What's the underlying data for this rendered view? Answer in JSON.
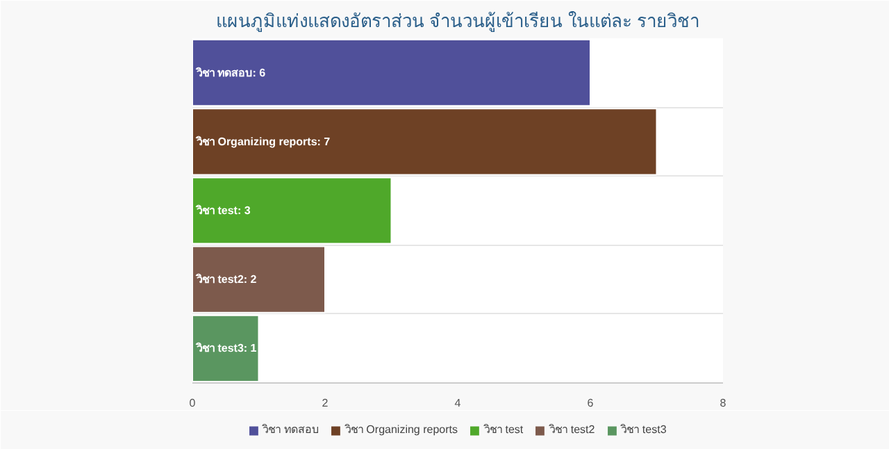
{
  "chart_data": {
    "type": "bar",
    "orientation": "horizontal",
    "stacked": true,
    "title": "แผนภูมิแท่งแสดงอัตราส่วน จำนวนผู้เข้าเรียน ในแต่ละ รายวิชา",
    "categories": [
      null,
      null,
      null,
      null,
      null
    ],
    "series": [
      {
        "name": "วิชา ทดสอบ",
        "color": "#50509a",
        "values": [
          6,
          null,
          null,
          null,
          null
        ],
        "value_labels": [
          "วิชา ทดสอบ: 6",
          null,
          null,
          null,
          null
        ]
      },
      {
        "name": "วิชา Organizing reports",
        "color": "#6e4125",
        "values": [
          null,
          7,
          null,
          null,
          null
        ],
        "value_labels": [
          null,
          "วิชา Organizing reports: 7",
          null,
          null,
          null
        ]
      },
      {
        "name": "วิชา test",
        "color": "#4fa82a",
        "values": [
          null,
          null,
          3,
          null,
          null
        ],
        "value_labels": [
          null,
          null,
          "วิชา test: 3",
          null,
          null
        ]
      },
      {
        "name": "วิชา test2",
        "color": "#7d5a4c",
        "values": [
          null,
          null,
          null,
          2,
          null
        ],
        "value_labels": [
          null,
          null,
          null,
          "วิชา test2: 2",
          null
        ]
      },
      {
        "name": "วิชา test3",
        "color": "#5a9660",
        "values": [
          null,
          null,
          null,
          null,
          1
        ],
        "value_labels": [
          null,
          null,
          null,
          null,
          "วิชา test3: 1"
        ]
      }
    ],
    "xlim": [
      0,
      8
    ],
    "xticks": [
      0,
      2,
      4,
      6,
      8
    ],
    "grid": "y",
    "legend": "bottom",
    "tick_labels": "x"
  }
}
